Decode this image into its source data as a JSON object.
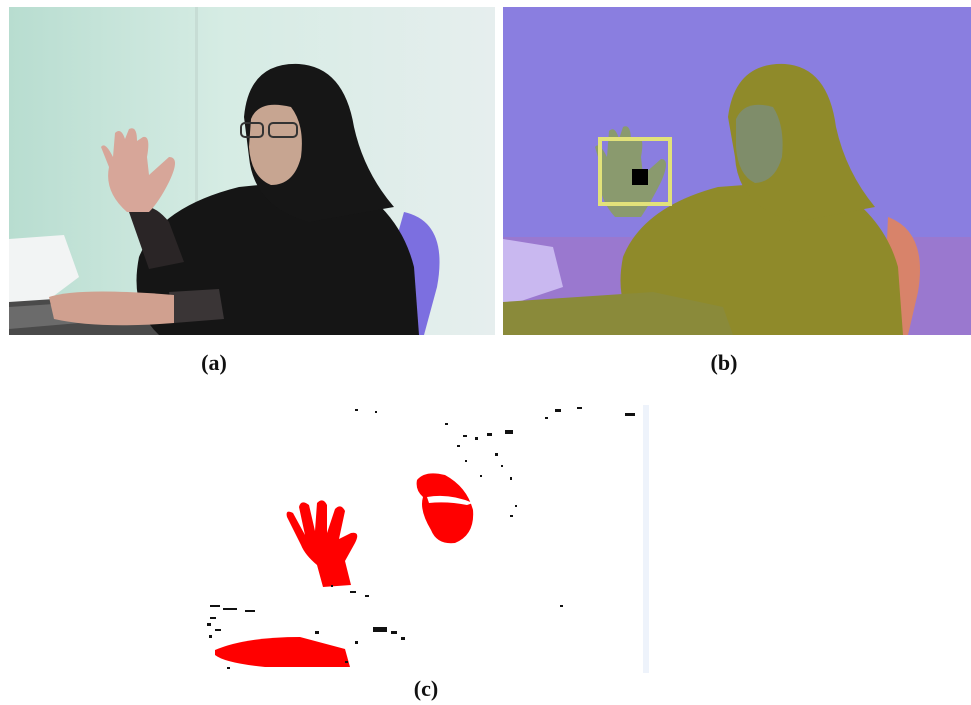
{
  "figure": {
    "captions": {
      "a": "(a)",
      "b": "(b)",
      "c": "(c)"
    },
    "colors": {
      "mask_red": "#ff0000",
      "roi_box": "#e2e27a",
      "depth_background": "#8a7ee0",
      "depth_subject": "#8f8a2a",
      "photo_wall": "#cfe6de",
      "clothing": "#141414",
      "chair": "#7c6fe0"
    }
  }
}
